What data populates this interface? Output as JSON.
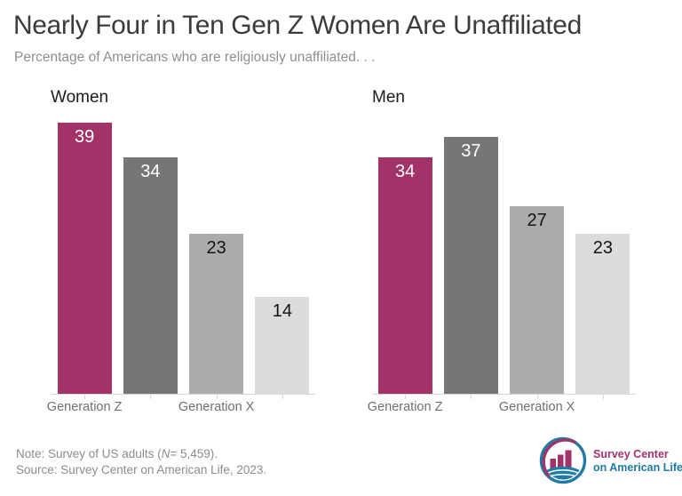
{
  "header": {
    "title": "Nearly Four in Ten Gen Z Women Are Unaffiliated",
    "subtitle": "Percentage of Americans who are religiously unaffiliated. . ."
  },
  "chart_data": {
    "type": "bar",
    "title": "Nearly Four in Ten Gen Z Women Are Unaffiliated",
    "subtitle": "Percentage of Americans who are religiously unaffiliated. . .",
    "unit": "percent",
    "ylim": [
      0,
      40
    ],
    "grid": false,
    "legend": "none",
    "panels": [
      {
        "title": "Women",
        "values": [
          39,
          34,
          23,
          14
        ]
      },
      {
        "title": "Men",
        "values": [
          34,
          37,
          27,
          23
        ]
      }
    ],
    "x_axis_labels": [
      {
        "text": "Generation Z",
        "slot": 0
      },
      {
        "text": "Generation X",
        "slot": 2
      }
    ],
    "bar_colors": [
      "#a23368",
      "#767676",
      "#ababab",
      "#dcdcdc"
    ],
    "value_label_colors": [
      "#ffffff",
      "#ffffff",
      "#141414",
      "#141414"
    ],
    "axis_color": "#d8d8d8"
  },
  "footer": {
    "note_prefix": "Note: Survey of US adults (",
    "note_n": "N",
    "note_suffix": "= 5,459).",
    "source": "Source: Survey Center on American Life, 2023."
  },
  "logo": {
    "line1": "Survey Center",
    "line2": "on American Life",
    "colors": {
      "magenta": "#a23368",
      "teal": "#1f7ba6"
    }
  }
}
